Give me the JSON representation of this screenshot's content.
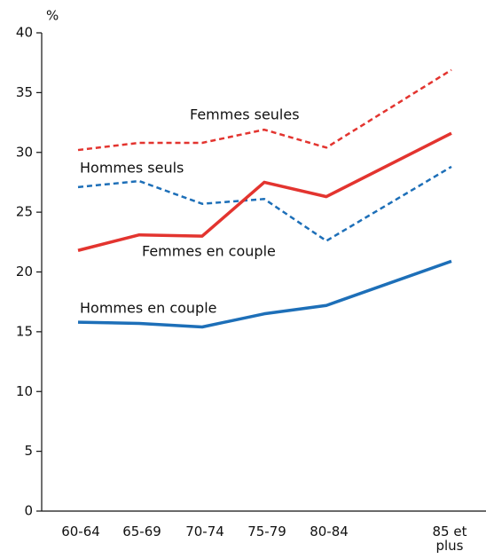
{
  "chart_data": {
    "type": "line",
    "y_label": "%",
    "categories": [
      "60-64",
      "65-69",
      "70-74",
      "75-79",
      "80-84",
      "85 et plus"
    ],
    "ylim": [
      0,
      40
    ],
    "yticks": [
      0,
      5,
      10,
      15,
      20,
      25,
      30,
      35,
      40
    ],
    "series": [
      {
        "name": "Femmes seules",
        "color": "#e3342f",
        "dashed": true,
        "values": [
          30.2,
          30.8,
          30.8,
          31.9,
          30.4,
          36.9
        ]
      },
      {
        "name": "Hommes seuls",
        "color": "#1d6fb8",
        "dashed": true,
        "values": [
          27.1,
          27.6,
          25.7,
          26.1,
          22.6,
          28.8
        ]
      },
      {
        "name": "Femmes en couple",
        "color": "#e3342f",
        "dashed": false,
        "values": [
          21.8,
          23.1,
          23.0,
          27.5,
          26.3,
          31.6
        ]
      },
      {
        "name": "Hommes en couple",
        "color": "#1d6fb8",
        "dashed": false,
        "values": [
          15.8,
          15.7,
          15.4,
          16.5,
          17.2,
          20.9
        ]
      }
    ]
  }
}
